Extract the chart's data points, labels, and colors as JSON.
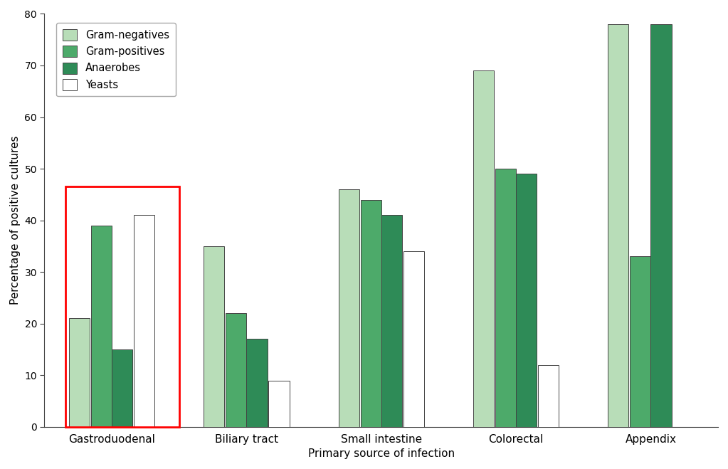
{
  "categories": [
    "Gastroduodenal",
    "Biliary tract",
    "Small intestine",
    "Colorectal",
    "Appendix"
  ],
  "series": [
    {
      "name": "Gram-negatives",
      "color": "#b8ddb8",
      "values": [
        21,
        35,
        46,
        69,
        78
      ]
    },
    {
      "name": "Gram-positives",
      "color": "#4daa6a",
      "values": [
        39,
        22,
        44,
        50,
        33
      ]
    },
    {
      "name": "Anaerobes",
      "color": "#2e8b57",
      "values": [
        15,
        17,
        41,
        49,
        78
      ]
    },
    {
      "name": "Yeasts",
      "color": "#ffffff",
      "values": [
        41,
        9,
        34,
        12,
        0
      ]
    }
  ],
  "ylabel": "Percentage of positive cultures",
  "xlabel": "Primary source of infection",
  "ylim": [
    0,
    80
  ],
  "yticks": [
    0,
    10,
    20,
    30,
    40,
    50,
    60,
    70,
    80
  ],
  "bar_width": 0.17,
  "background_color": "#ffffff",
  "edge_color": "#444444",
  "highlight_color": "red",
  "highlight_linewidth": 2.0
}
